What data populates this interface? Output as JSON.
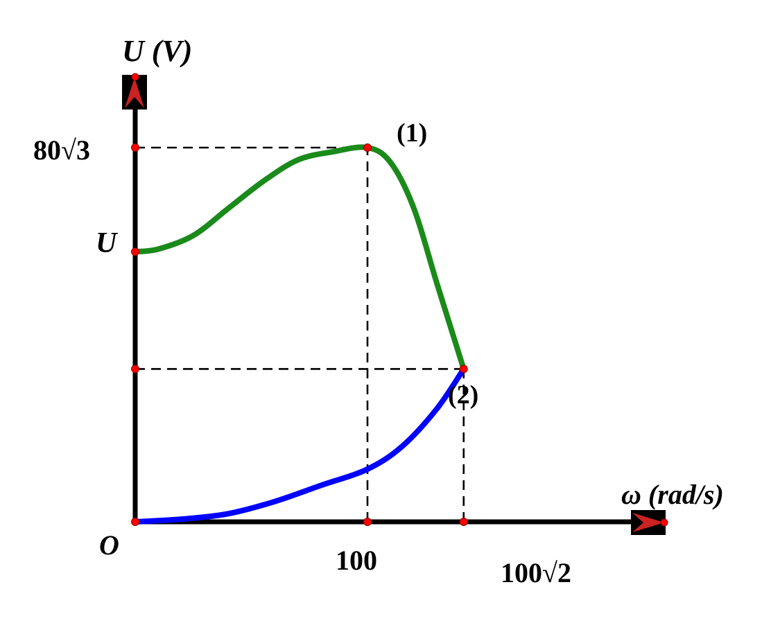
{
  "chart_data": {
    "type": "line",
    "y_axis_label": "U (V)",
    "x_axis_label": "ω (rad/s)",
    "origin_label": "O",
    "x_ticks": [
      {
        "label": "100",
        "value": 100
      },
      {
        "label": "100√2",
        "value": 141.42
      }
    ],
    "y_ticks": [
      {
        "label": "80√3",
        "value": 138.56
      },
      {
        "label": "U",
        "value": 100
      },
      {
        "label": "",
        "value": 56.6
      }
    ],
    "xlim": [
      0,
      250
    ],
    "ylim": [
      0,
      176
    ],
    "series": [
      {
        "name": "(1)",
        "color": "#1a8a1a",
        "x": [
          0,
          10,
          25,
          40,
          55,
          70,
          85,
          100,
          110,
          120,
          130,
          141.42
        ],
        "y": [
          100,
          101,
          106,
          116,
          126,
          134,
          137,
          138.56,
          133,
          116,
          88,
          56.6
        ]
      },
      {
        "name": "(2)",
        "color": "#0000ff",
        "x": [
          0,
          20,
          40,
          60,
          80,
          100,
          115,
          130,
          141.42
        ],
        "y": [
          0,
          1,
          3,
          7.5,
          13.5,
          19.5,
          28,
          42,
          56.6
        ]
      }
    ],
    "guides": [
      {
        "from": [
          0,
          138.56
        ],
        "to": [
          100,
          138.56
        ]
      },
      {
        "from": [
          100,
          0
        ],
        "to": [
          100,
          138.56
        ]
      },
      {
        "from": [
          0,
          56.6
        ],
        "to": [
          141.42,
          56.6
        ]
      },
      {
        "from": [
          141.42,
          0
        ],
        "to": [
          141.42,
          56.6
        ]
      }
    ],
    "grid": false
  },
  "colors": {
    "axis": "#000000",
    "point": "#ff0000",
    "arrow_fill": "#cc2222"
  }
}
